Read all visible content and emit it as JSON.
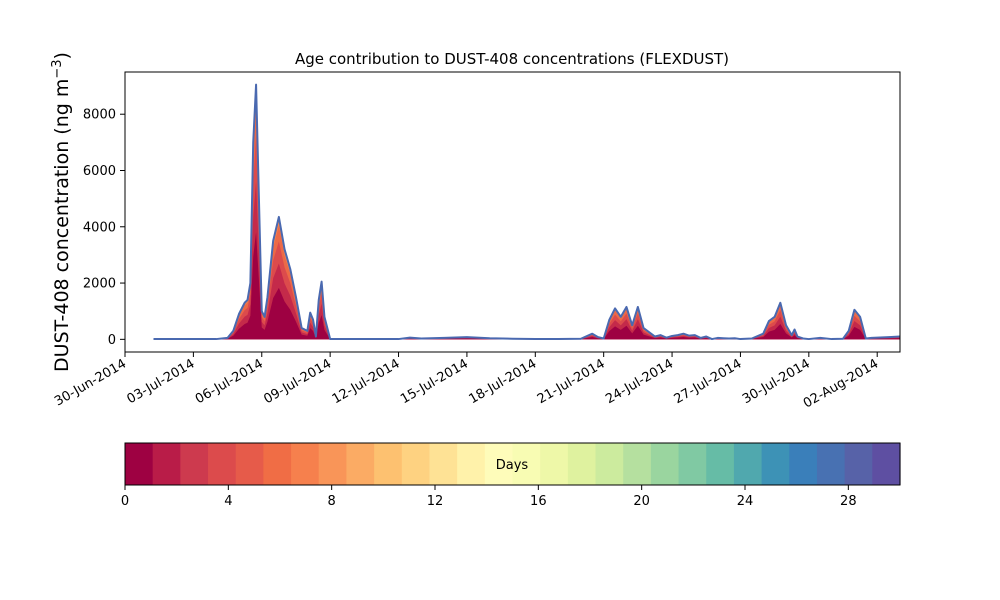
{
  "chart_data": {
    "type": "area",
    "title": "Age contribution to DUST-408 concentrations (FLEXDUST)",
    "ylabel": "DUST-408 concentration (ng m",
    "ylabel_sup": "−3",
    "ylabel_close": ")",
    "xlabel": "",
    "xlim": [
      "2014-06-30",
      "2014-08-03"
    ],
    "ylim": [
      -450,
      9500
    ],
    "x_ticks": [
      "2014-06-30",
      "2014-07-03",
      "2014-07-06",
      "2014-07-09",
      "2014-07-12",
      "2014-07-15",
      "2014-07-18",
      "2014-07-21",
      "2014-07-24",
      "2014-07-27",
      "2014-07-30",
      "2014-08-02"
    ],
    "x_tick_labels": [
      "30-Jun-2014",
      "03-Jul-2014",
      "06-Jul-2014",
      "09-Jul-2014",
      "12-Jul-2014",
      "15-Jul-2014",
      "18-Jul-2014",
      "21-Jul-2014",
      "24-Jul-2014",
      "27-Jul-2014",
      "30-Jul-2014",
      "02-Aug-2014"
    ],
    "y_ticks": [
      0,
      2000,
      4000,
      6000,
      8000
    ],
    "y_tick_labels": [
      "0",
      "2000",
      "4000",
      "6000",
      "8000"
    ],
    "grid": false,
    "stack_note": "Stacked contributions by particle age (days); the outline is the total concentration.",
    "total_series": {
      "x": [
        "2014-07-01 06:00",
        "2014-07-03 00:00",
        "2014-07-04 00:00",
        "2014-07-04 12:00",
        "2014-07-04 18:00",
        "2014-07-05 00:00",
        "2014-07-05 06:00",
        "2014-07-05 09:00",
        "2014-07-05 12:00",
        "2014-07-05 15:00",
        "2014-07-05 18:00",
        "2014-07-05 21:00",
        "2014-07-06 00:00",
        "2014-07-06 03:00",
        "2014-07-06 06:00",
        "2014-07-06 09:00",
        "2014-07-06 12:00",
        "2014-07-06 18:00",
        "2014-07-07 00:00",
        "2014-07-07 06:00",
        "2014-07-07 12:00",
        "2014-07-07 18:00",
        "2014-07-08 00:00",
        "2014-07-08 03:00",
        "2014-07-08 06:00",
        "2014-07-08 09:00",
        "2014-07-08 12:00",
        "2014-07-08 15:00",
        "2014-07-08 18:00",
        "2014-07-09 00:00",
        "2014-07-10 00:00",
        "2014-07-11 00:00",
        "2014-07-12 00:00",
        "2014-07-12 12:00",
        "2014-07-13 00:00",
        "2014-07-14 00:00",
        "2014-07-15 00:00",
        "2014-07-16 00:00",
        "2014-07-17 00:00",
        "2014-07-18 00:00",
        "2014-07-19 00:00",
        "2014-07-20 00:00",
        "2014-07-20 12:00",
        "2014-07-20 18:00",
        "2014-07-21 00:00",
        "2014-07-21 06:00",
        "2014-07-21 12:00",
        "2014-07-21 18:00",
        "2014-07-22 00:00",
        "2014-07-22 06:00",
        "2014-07-22 12:00",
        "2014-07-22 18:00",
        "2014-07-23 00:00",
        "2014-07-23 06:00",
        "2014-07-23 12:00",
        "2014-07-23 18:00",
        "2014-07-24 00:00",
        "2014-07-24 06:00",
        "2014-07-24 12:00",
        "2014-07-24 18:00",
        "2014-07-25 00:00",
        "2014-07-25 06:00",
        "2014-07-25 12:00",
        "2014-07-25 18:00",
        "2014-07-26 00:00",
        "2014-07-26 06:00",
        "2014-07-26 12:00",
        "2014-07-26 18:00",
        "2014-07-27 00:00",
        "2014-07-27 12:00",
        "2014-07-28 00:00",
        "2014-07-28 06:00",
        "2014-07-28 12:00",
        "2014-07-28 18:00",
        "2014-07-29 00:00",
        "2014-07-29 06:00",
        "2014-07-29 09:00",
        "2014-07-29 12:00",
        "2014-07-29 18:00",
        "2014-07-30 00:00",
        "2014-07-30 12:00",
        "2014-07-31 00:00",
        "2014-07-31 12:00",
        "2014-07-31 18:00",
        "2014-08-01 00:00",
        "2014-08-01 06:00",
        "2014-08-01 12:00",
        "2014-08-01 18:00",
        "2014-08-02 00:00",
        "2014-08-02 12:00",
        "2014-08-03 00:00"
      ],
      "y": [
        10,
        10,
        10,
        50,
        300,
        900,
        1300,
        1400,
        2000,
        7000,
        9050,
        5000,
        1000,
        800,
        1500,
        2500,
        3500,
        4350,
        3200,
        2500,
        1500,
        400,
        300,
        950,
        700,
        100,
        1400,
        2050,
        800,
        10,
        10,
        10,
        10,
        60,
        30,
        50,
        80,
        40,
        20,
        10,
        10,
        20,
        200,
        80,
        30,
        700,
        1100,
        800,
        1150,
        500,
        1150,
        400,
        250,
        100,
        150,
        60,
        120,
        150,
        200,
        130,
        150,
        50,
        100,
        10,
        50,
        40,
        30,
        40,
        10,
        30,
        200,
        650,
        800,
        1300,
        500,
        150,
        350,
        100,
        30,
        10,
        50,
        10,
        20,
        300,
        1050,
        800,
        30,
        50,
        60,
        80,
        100
      ],
      "color": "#4a69b0"
    },
    "colorbar": {
      "label": "Days",
      "min": 0,
      "max": 30,
      "ticks": [
        0,
        4,
        8,
        12,
        16,
        20,
        24,
        28
      ],
      "tick_labels": [
        "0",
        "4",
        "8",
        "12",
        "16",
        "20",
        "24",
        "28"
      ],
      "colors": [
        "#9e0142",
        "#b91c48",
        "#cd3a4e",
        "#dc4b4c",
        "#e65b4a",
        "#f06d45",
        "#f6804d",
        "#f99558",
        "#fbab64",
        "#fdc170",
        "#fed281",
        "#fee295",
        "#fff2aa",
        "#fefcba",
        "#f8fcb3",
        "#eef8a8",
        "#dff29f",
        "#cceb9e",
        "#b5e09f",
        "#9ad59f",
        "#80c9a3",
        "#66bca6",
        "#50a8ae",
        "#3d92b6",
        "#3a7fba",
        "#4871b2",
        "#5762a8",
        "#5e4fa2"
      ]
    },
    "colors": {
      "axes": "#000000",
      "background": "#ffffff"
    }
  }
}
